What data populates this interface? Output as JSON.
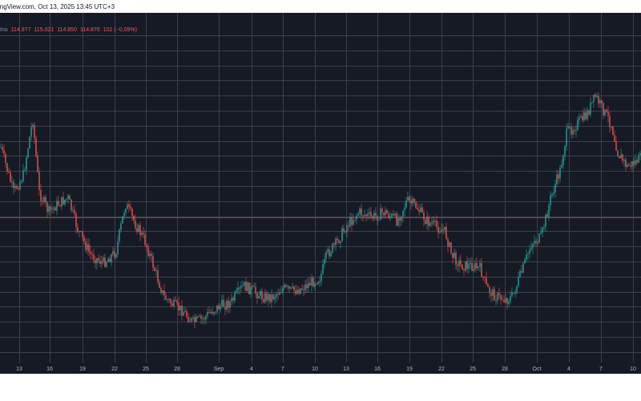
{
  "header": {
    "text": "ingView.com, Oct 13, 2025 13:45 UTC+3"
  },
  "legend": {
    "label": "Ino",
    "open": "114.977",
    "high": "115.021",
    "low": "114.850",
    "close": "114.876",
    "change": "102 (−0.09%)"
  },
  "colors": {
    "up": "#26a69a",
    "down": "#ef5350",
    "background": "#161a25",
    "grid": "#3a3f4b",
    "price_line": "#a03838",
    "axis_text": "#b2b5be"
  },
  "chart_data": {
    "type": "candlestick",
    "x_tick_labels": [
      "13",
      "16",
      "19",
      "22",
      "25",
      "28",
      "Sep",
      "4",
      "7",
      "10",
      "13",
      "16",
      "19",
      "22",
      "25",
      "28",
      "Oct",
      "4",
      "7",
      "10"
    ],
    "grid": true,
    "price_line": true,
    "series": [
      {
        "shape": [
          [
            0,
            0.26
          ],
          [
            0.02,
            0.42
          ],
          [
            0.035,
            0.36
          ],
          [
            0.05,
            0.16
          ],
          [
            0.06,
            0.42
          ],
          [
            0.075,
            0.49
          ],
          [
            0.09,
            0.46
          ],
          [
            0.105,
            0.44
          ],
          [
            0.12,
            0.55
          ],
          [
            0.14,
            0.64
          ],
          [
            0.16,
            0.67
          ],
          [
            0.18,
            0.63
          ],
          [
            0.195,
            0.46
          ],
          [
            0.21,
            0.53
          ],
          [
            0.225,
            0.59
          ],
          [
            0.24,
            0.69
          ],
          [
            0.255,
            0.79
          ],
          [
            0.27,
            0.82
          ],
          [
            0.285,
            0.84
          ],
          [
            0.3,
            0.88
          ],
          [
            0.315,
            0.87
          ],
          [
            0.33,
            0.84
          ],
          [
            0.345,
            0.82
          ],
          [
            0.36,
            0.81
          ],
          [
            0.38,
            0.75
          ],
          [
            0.395,
            0.77
          ],
          [
            0.41,
            0.79
          ],
          [
            0.425,
            0.79
          ],
          [
            0.44,
            0.76
          ],
          [
            0.455,
            0.77
          ],
          [
            0.47,
            0.76
          ],
          [
            0.485,
            0.74
          ],
          [
            0.5,
            0.72
          ],
          [
            0.51,
            0.64
          ],
          [
            0.525,
            0.6
          ],
          [
            0.54,
            0.54
          ],
          [
            0.56,
            0.49
          ],
          [
            0.58,
            0.51
          ],
          [
            0.6,
            0.49
          ],
          [
            0.62,
            0.52
          ],
          [
            0.635,
            0.45
          ],
          [
            0.65,
            0.47
          ],
          [
            0.665,
            0.52
          ],
          [
            0.68,
            0.54
          ],
          [
            0.695,
            0.56
          ],
          [
            0.705,
            0.64
          ],
          [
            0.72,
            0.68
          ],
          [
            0.735,
            0.68
          ],
          [
            0.75,
            0.69
          ],
          [
            0.76,
            0.76
          ],
          [
            0.775,
            0.79
          ],
          [
            0.79,
            0.8
          ],
          [
            0.8,
            0.79
          ],
          [
            0.815,
            0.7
          ],
          [
            0.83,
            0.6
          ],
          [
            0.845,
            0.58
          ],
          [
            0.86,
            0.44
          ],
          [
            0.875,
            0.34
          ],
          [
            0.885,
            0.21
          ],
          [
            0.9,
            0.18
          ],
          [
            0.915,
            0.15
          ],
          [
            0.93,
            0.08
          ],
          [
            0.94,
            0.12
          ],
          [
            0.955,
            0.18
          ],
          [
            0.965,
            0.28
          ],
          [
            0.98,
            0.33
          ],
          [
            1.0,
            0.3
          ]
        ]
      }
    ]
  }
}
